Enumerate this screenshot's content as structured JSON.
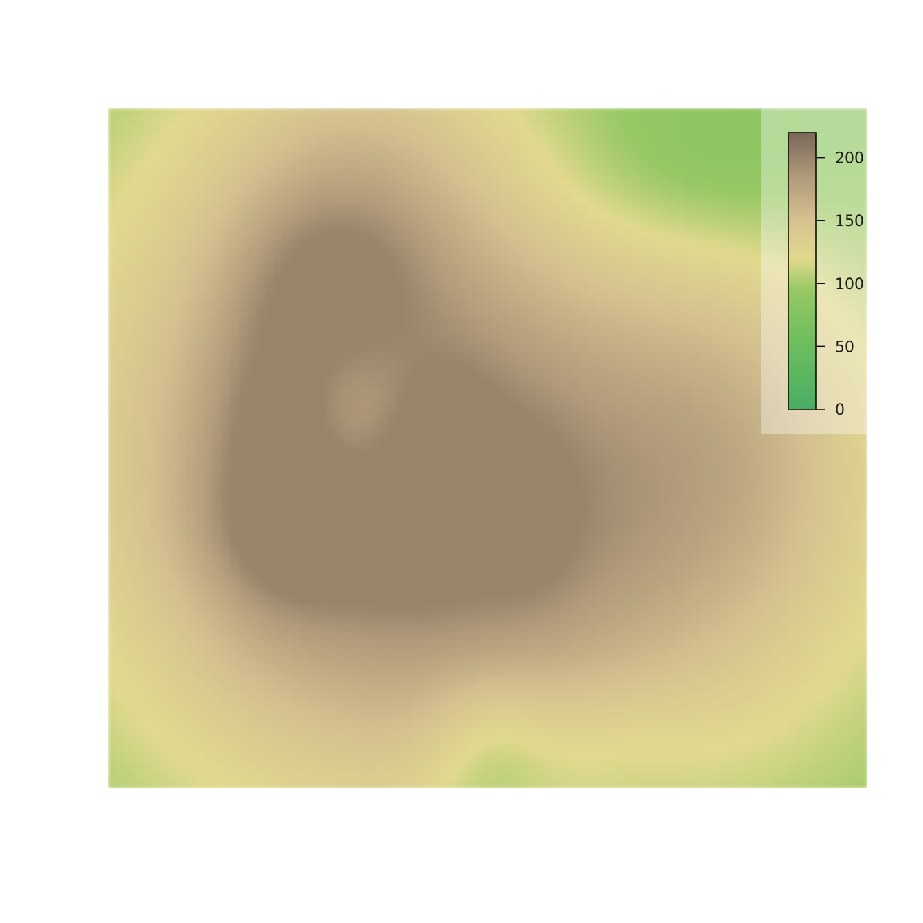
{
  "chart_data": {
    "type": "heatmap",
    "title": "",
    "xlabel": "",
    "ylabel": "",
    "axes_drawn": false,
    "grid": false,
    "legend": {
      "kind": "colorbar",
      "placement": "top-right",
      "ticks": [
        "0",
        "50",
        "100",
        "150",
        "200"
      ],
      "tick_values": [
        0,
        50,
        100,
        150,
        200
      ],
      "range": [
        0,
        220
      ]
    },
    "colormap": {
      "name": "terrain",
      "stops": [
        {
          "v": 0,
          "color": "#48ae62"
        },
        {
          "v": 60,
          "color": "#74bf5e"
        },
        {
          "v": 95,
          "color": "#97c864"
        },
        {
          "v": 120,
          "color": "#e2d98e"
        },
        {
          "v": 150,
          "color": "#d5c190"
        },
        {
          "v": 185,
          "color": "#b09a7a"
        },
        {
          "v": 220,
          "color": "#7a6758"
        }
      ]
    },
    "grid_size": {
      "cols": 87,
      "rows": 78
    },
    "surface": {
      "base": 88,
      "value_range": [
        85,
        200
      ],
      "features": [
        {
          "cx": 0.3,
          "cy": 0.48,
          "sx": 0.26,
          "sy": 0.36,
          "a": 80
        },
        {
          "cx": 0.62,
          "cy": 0.62,
          "sx": 0.3,
          "sy": 0.28,
          "a": 70
        },
        {
          "cx": 0.84,
          "cy": 0.45,
          "sx": 0.12,
          "sy": 0.2,
          "a": 25
        },
        {
          "cx": 0.33,
          "cy": 0.08,
          "sx": 0.13,
          "sy": 0.15,
          "a": 25
        },
        {
          "cx": 0.22,
          "cy": 0.5,
          "sx": 0.06,
          "sy": 0.16,
          "a": 30
        },
        {
          "cx": 0.3,
          "cy": 0.25,
          "sx": 0.08,
          "sy": 0.09,
          "a": 30
        },
        {
          "cx": 0.3,
          "cy": 0.62,
          "sx": 0.1,
          "sy": 0.07,
          "a": 30
        },
        {
          "cx": 0.44,
          "cy": 0.53,
          "sx": 0.05,
          "sy": 0.08,
          "a": 30
        },
        {
          "cx": 0.55,
          "cy": 0.6,
          "sx": 0.04,
          "sy": 0.07,
          "a": 22
        },
        {
          "cx": 0.33,
          "cy": 0.46,
          "sx": 0.06,
          "sy": 0.09,
          "a": -28
        },
        {
          "cx": 0.5,
          "cy": 0.95,
          "sx": 0.06,
          "sy": 0.09,
          "a": -25
        },
        {
          "cx": 0.64,
          "cy": 0.94,
          "sx": 0.1,
          "sy": 0.08,
          "a": -15
        },
        {
          "cx": 0.78,
          "cy": 0.08,
          "sx": 0.14,
          "sy": 0.1,
          "a": -20
        }
      ]
    }
  }
}
